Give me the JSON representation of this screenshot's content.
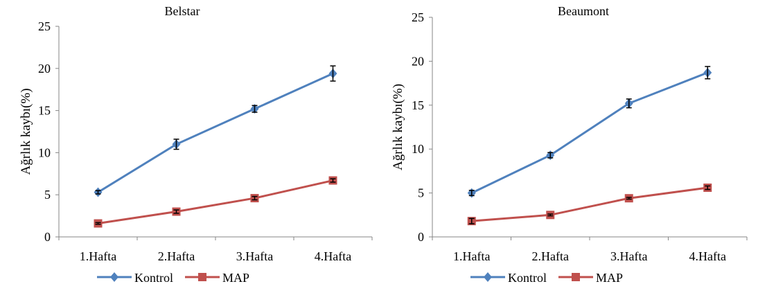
{
  "chart_data": [
    {
      "type": "line",
      "title": "Belstar",
      "ylabel": "Ağrlık kaybı(%)",
      "xlabel": "",
      "categories": [
        "1.Hafta",
        "2.Hafta",
        "3.Hafta",
        "4.Hafta"
      ],
      "ylim": [
        0,
        25
      ],
      "yticks": [
        0,
        5,
        10,
        15,
        20,
        25
      ],
      "grid": false,
      "legend": "bottom",
      "series": [
        {
          "name": "Kontrol",
          "color": "#4f81bd",
          "marker": "diamond",
          "values": [
            5.3,
            11.0,
            15.2,
            19.4
          ],
          "errors": [
            0.2,
            0.6,
            0.4,
            0.9
          ]
        },
        {
          "name": "MAP",
          "color": "#c0504d",
          "marker": "square",
          "values": [
            1.6,
            3.0,
            4.6,
            6.7
          ],
          "errors": [
            0.1,
            0.2,
            0.2,
            0.2
          ]
        }
      ]
    },
    {
      "type": "line",
      "title": "Beaumont",
      "ylabel": "Ağrlık kaybı(%)",
      "xlabel": "",
      "categories": [
        "1.Hafta",
        "2.Hafta",
        "3.Hafta",
        "4.Hafta"
      ],
      "ylim": [
        0,
        25
      ],
      "yticks": [
        0,
        5,
        10,
        15,
        20,
        25
      ],
      "grid": false,
      "legend": "bottom",
      "series": [
        {
          "name": "Kontrol",
          "color": "#4f81bd",
          "marker": "diamond",
          "values": [
            5.0,
            9.3,
            15.2,
            18.7
          ],
          "errors": [
            0.3,
            0.3,
            0.5,
            0.7
          ]
        },
        {
          "name": "MAP",
          "color": "#c0504d",
          "marker": "square",
          "values": [
            1.8,
            2.5,
            4.4,
            5.6
          ],
          "errors": [
            0.3,
            0.1,
            0.1,
            0.2
          ]
        }
      ]
    }
  ]
}
